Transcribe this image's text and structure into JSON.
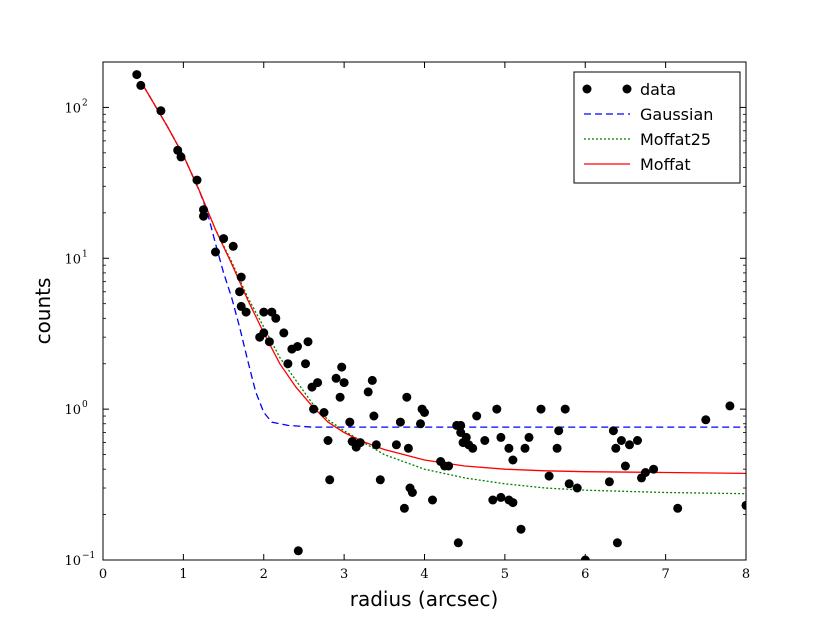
{
  "chart_data": {
    "type": "scatter",
    "title": "",
    "xlabel": "radius (arcsec)",
    "ylabel": "counts",
    "xlim": [
      0,
      8
    ],
    "ylim": [
      0.1,
      200
    ],
    "yscale": "log",
    "grid": false,
    "legend_position": "top-right",
    "x_ticks": [
      0,
      1,
      2,
      3,
      4,
      5,
      6,
      7,
      8
    ],
    "x_tick_labels": [
      "0",
      "1",
      "2",
      "3",
      "4",
      "5",
      "6",
      "7",
      "8"
    ],
    "y_ticks": [
      0.1,
      1,
      10,
      100
    ],
    "y_tick_labels": [
      {
        "base": "10",
        "exp": "−1"
      },
      {
        "base": "10",
        "exp": "0"
      },
      {
        "base": "10",
        "exp": "1"
      },
      {
        "base": "10",
        "exp": "2"
      }
    ],
    "series": [
      {
        "name": "data",
        "kind": "scatter",
        "color": "#000000",
        "points": [
          [
            0.42,
            165
          ],
          [
            0.47,
            140
          ],
          [
            0.72,
            95
          ],
          [
            0.93,
            52
          ],
          [
            0.97,
            47
          ],
          [
            1.17,
            33
          ],
          [
            1.25,
            21
          ],
          [
            1.25,
            19
          ],
          [
            1.4,
            11
          ],
          [
            1.5,
            13.5
          ],
          [
            1.62,
            12
          ],
          [
            1.7,
            6
          ],
          [
            1.72,
            7.5
          ],
          [
            1.72,
            4.8
          ],
          [
            1.78,
            4.4
          ],
          [
            1.95,
            3.0
          ],
          [
            2.0,
            3.2
          ],
          [
            2.0,
            4.4
          ],
          [
            2.07,
            2.8
          ],
          [
            2.1,
            4.4
          ],
          [
            2.15,
            4.0
          ],
          [
            2.25,
            3.2
          ],
          [
            2.3,
            2.0
          ],
          [
            2.35,
            2.5
          ],
          [
            2.42,
            2.6
          ],
          [
            2.52,
            2.0
          ],
          [
            2.55,
            2.8
          ],
          [
            2.6,
            1.4
          ],
          [
            2.62,
            1.0
          ],
          [
            2.67,
            1.5
          ],
          [
            2.75,
            0.95
          ],
          [
            2.8,
            0.62
          ],
          [
            2.82,
            0.34
          ],
          [
            2.9,
            1.6
          ],
          [
            2.95,
            1.2
          ],
          [
            2.97,
            1.9
          ],
          [
            3.0,
            1.5
          ],
          [
            3.07,
            0.82
          ],
          [
            3.1,
            0.61
          ],
          [
            3.15,
            0.56
          ],
          [
            3.2,
            0.6
          ],
          [
            3.3,
            1.3
          ],
          [
            3.35,
            1.55
          ],
          [
            3.37,
            0.9
          ],
          [
            3.4,
            0.58
          ],
          [
            3.45,
            0.34
          ],
          [
            3.65,
            0.58
          ],
          [
            3.7,
            0.82
          ],
          [
            3.75,
            0.22
          ],
          [
            3.78,
            1.2
          ],
          [
            3.8,
            0.55
          ],
          [
            3.82,
            0.3
          ],
          [
            3.85,
            0.28
          ],
          [
            3.95,
            0.8
          ],
          [
            3.97,
            1.0
          ],
          [
            4.0,
            0.95
          ],
          [
            4.1,
            0.25
          ],
          [
            4.2,
            0.45
          ],
          [
            4.25,
            0.42
          ],
          [
            4.3,
            0.42
          ],
          [
            4.4,
            0.78
          ],
          [
            4.42,
            0.13
          ],
          [
            4.45,
            0.7
          ],
          [
            4.45,
            0.78
          ],
          [
            4.48,
            0.6
          ],
          [
            4.52,
            0.65
          ],
          [
            4.55,
            0.58
          ],
          [
            4.6,
            0.55
          ],
          [
            4.65,
            0.9
          ],
          [
            4.75,
            0.62
          ],
          [
            4.85,
            0.25
          ],
          [
            4.9,
            1.0
          ],
          [
            4.95,
            0.65
          ],
          [
            4.95,
            0.26
          ],
          [
            5.05,
            0.55
          ],
          [
            5.05,
            0.25
          ],
          [
            5.1,
            0.46
          ],
          [
            5.1,
            0.24
          ],
          [
            5.2,
            0.16
          ],
          [
            5.25,
            0.55
          ],
          [
            5.3,
            0.65
          ],
          [
            5.45,
            1.0
          ],
          [
            5.55,
            0.36
          ],
          [
            5.65,
            0.55
          ],
          [
            5.67,
            0.72
          ],
          [
            5.75,
            1.0
          ],
          [
            5.8,
            0.32
          ],
          [
            5.9,
            0.3
          ],
          [
            6.0,
            0.1
          ],
          [
            6.3,
            0.33
          ],
          [
            6.35,
            0.72
          ],
          [
            6.38,
            0.55
          ],
          [
            6.4,
            0.13
          ],
          [
            6.45,
            0.62
          ],
          [
            6.5,
            0.42
          ],
          [
            6.55,
            0.58
          ],
          [
            6.65,
            0.62
          ],
          [
            6.7,
            0.35
          ],
          [
            6.75,
            0.38
          ],
          [
            6.85,
            0.4
          ],
          [
            7.15,
            0.22
          ],
          [
            7.5,
            0.85
          ],
          [
            7.8,
            1.05
          ],
          [
            8.0,
            0.23
          ],
          [
            2.43,
            0.115
          ]
        ]
      },
      {
        "name": "Gaussian",
        "kind": "line",
        "dash": "dashed",
        "color": "#0000ff",
        "points": [
          [
            0.5,
            140
          ],
          [
            0.8,
            75
          ],
          [
            1.0,
            48
          ],
          [
            1.2,
            28
          ],
          [
            1.3,
            20
          ],
          [
            1.4,
            12.5
          ],
          [
            1.5,
            8.0
          ],
          [
            1.6,
            5.5
          ],
          [
            1.7,
            3.5
          ],
          [
            1.8,
            2.1
          ],
          [
            1.9,
            1.3
          ],
          [
            2.0,
            0.95
          ],
          [
            2.1,
            0.82
          ],
          [
            2.3,
            0.78
          ],
          [
            2.6,
            0.76
          ],
          [
            3.0,
            0.76
          ],
          [
            4.0,
            0.76
          ],
          [
            5.0,
            0.76
          ],
          [
            6.0,
            0.76
          ],
          [
            7.0,
            0.76
          ],
          [
            8.0,
            0.76
          ]
        ]
      },
      {
        "name": "Moffat25",
        "kind": "line",
        "dash": "dotted",
        "color": "#008000",
        "points": [
          [
            0.5,
            140
          ],
          [
            0.8,
            75
          ],
          [
            1.0,
            48
          ],
          [
            1.2,
            28
          ],
          [
            1.4,
            15.5
          ],
          [
            1.6,
            9.5
          ],
          [
            1.8,
            5.5
          ],
          [
            2.0,
            3.5
          ],
          [
            2.2,
            2.2
          ],
          [
            2.4,
            1.55
          ],
          [
            2.6,
            1.1
          ],
          [
            2.8,
            0.85
          ],
          [
            3.0,
            0.72
          ],
          [
            3.2,
            0.62
          ],
          [
            3.5,
            0.5
          ],
          [
            4.0,
            0.4
          ],
          [
            4.5,
            0.35
          ],
          [
            5.0,
            0.32
          ],
          [
            5.5,
            0.3
          ],
          [
            6.0,
            0.29
          ],
          [
            7.0,
            0.28
          ],
          [
            8.0,
            0.275
          ]
        ]
      },
      {
        "name": "Moffat",
        "kind": "line",
        "dash": "solid",
        "color": "#ff0000",
        "points": [
          [
            0.5,
            140
          ],
          [
            0.8,
            75
          ],
          [
            1.0,
            48
          ],
          [
            1.2,
            28
          ],
          [
            1.4,
            15.5
          ],
          [
            1.6,
            9.2
          ],
          [
            1.8,
            5.3
          ],
          [
            2.0,
            3.2
          ],
          [
            2.2,
            2.0
          ],
          [
            2.4,
            1.4
          ],
          [
            2.6,
            1.05
          ],
          [
            2.8,
            0.82
          ],
          [
            3.0,
            0.7
          ],
          [
            3.2,
            0.62
          ],
          [
            3.5,
            0.54
          ],
          [
            4.0,
            0.46
          ],
          [
            4.5,
            0.42
          ],
          [
            5.0,
            0.4
          ],
          [
            5.5,
            0.39
          ],
          [
            6.0,
            0.385
          ],
          [
            7.0,
            0.38
          ],
          [
            8.0,
            0.375
          ]
        ]
      }
    ]
  }
}
